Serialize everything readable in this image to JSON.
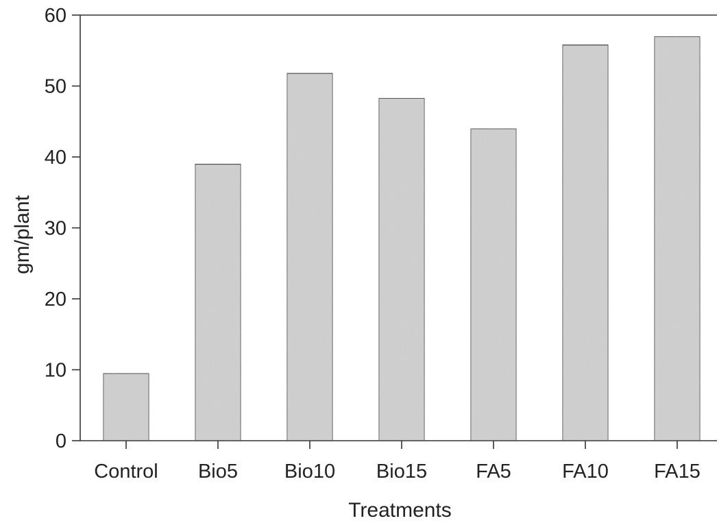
{
  "chart_data": {
    "type": "bar",
    "categories": [
      "Control",
      "Bio5",
      "Bio10",
      "Bio15",
      "FA5",
      "FA10",
      "FA15"
    ],
    "values": [
      9.5,
      39,
      51.8,
      48.3,
      44,
      55.8,
      57
    ],
    "title": "",
    "xlabel": "Treatments",
    "ylabel": "gm/plant",
    "ylim": [
      0,
      60
    ],
    "yticks": [
      0,
      10,
      20,
      30,
      40,
      50,
      60
    ],
    "grid": false,
    "legend": "none",
    "colors": {
      "bar_fill": "#d0d0d0",
      "bar_stroke": "#333333",
      "axis": "#333333",
      "text": "#222222"
    }
  }
}
